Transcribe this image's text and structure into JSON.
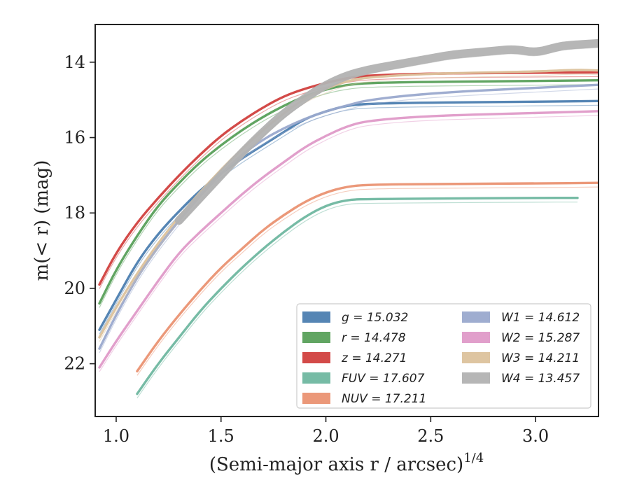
{
  "chart_data": {
    "type": "line",
    "xlabel": "(Semi-major axis r / arcsec)",
    "xlabel_exponent": "1/4",
    "ylabel": "m(< r) (mag)",
    "xlim": [
      0.9,
      3.3
    ],
    "ylim": [
      23.4,
      13.0
    ],
    "y_inverted": true,
    "grid": false,
    "legend_placement": "lower-right",
    "x_ticks": [
      "1.0",
      "1.5",
      "2.0",
      "2.5",
      "3.0"
    ],
    "y_ticks": [
      "14",
      "16",
      "18",
      "20",
      "22"
    ],
    "series": [
      {
        "name": "g",
        "label": "g = 15.032",
        "color": "#4c7eb0",
        "x": [
          0.92,
          1.0,
          1.1,
          1.2,
          1.3,
          1.4,
          1.5,
          1.6,
          1.7,
          1.8,
          1.9,
          2.0,
          2.1,
          2.2,
          2.5,
          3.0,
          3.3
        ],
        "y": [
          21.1,
          20.3,
          19.3,
          18.55,
          17.95,
          17.4,
          16.95,
          16.55,
          16.2,
          15.85,
          15.5,
          15.3,
          15.15,
          15.1,
          15.07,
          15.05,
          15.03
        ]
      },
      {
        "name": "r",
        "label": "r = 14.478",
        "color": "#58a05a",
        "x": [
          0.92,
          1.0,
          1.1,
          1.2,
          1.3,
          1.4,
          1.5,
          1.6,
          1.7,
          1.8,
          1.9,
          2.0,
          2.1,
          2.2,
          2.5,
          3.0,
          3.3
        ],
        "y": [
          20.4,
          19.5,
          18.6,
          17.8,
          17.2,
          16.65,
          16.2,
          15.8,
          15.45,
          15.15,
          14.9,
          14.72,
          14.6,
          14.55,
          14.52,
          14.5,
          14.48
        ]
      },
      {
        "name": "z",
        "label": "z = 14.271",
        "color": "#d1403e",
        "x": [
          0.92,
          1.0,
          1.1,
          1.2,
          1.3,
          1.4,
          1.5,
          1.6,
          1.7,
          1.8,
          1.9,
          2.0,
          2.1,
          2.2,
          2.5,
          3.0,
          3.3
        ],
        "y": [
          19.9,
          19.05,
          18.25,
          17.6,
          17.0,
          16.45,
          15.95,
          15.55,
          15.2,
          14.9,
          14.7,
          14.55,
          14.42,
          14.35,
          14.3,
          14.28,
          14.27
        ]
      },
      {
        "name": "FUV",
        "label": "FUV = 17.607",
        "color": "#6fb7a0",
        "x": [
          1.1,
          1.2,
          1.3,
          1.4,
          1.5,
          1.6,
          1.7,
          1.8,
          1.9,
          2.0,
          2.1,
          2.2,
          2.5,
          3.0,
          3.2
        ],
        "y": [
          22.8,
          22.0,
          21.3,
          20.6,
          20.0,
          19.45,
          18.95,
          18.5,
          18.1,
          17.8,
          17.65,
          17.63,
          17.62,
          17.6,
          17.6
        ]
      },
      {
        "name": "NUV",
        "label": "NUV = 17.211",
        "color": "#ea9272",
        "x": [
          1.1,
          1.2,
          1.3,
          1.4,
          1.5,
          1.6,
          1.7,
          1.8,
          1.9,
          2.0,
          2.1,
          2.2,
          2.5,
          3.0,
          3.3
        ],
        "y": [
          22.2,
          21.4,
          20.7,
          20.05,
          19.45,
          18.95,
          18.45,
          18.05,
          17.7,
          17.45,
          17.3,
          17.25,
          17.23,
          17.22,
          17.2
        ]
      },
      {
        "name": "W1",
        "label": "W1 = 14.612",
        "color": "#9aa9cd",
        "x": [
          0.92,
          1.0,
          1.1,
          1.2,
          1.3,
          1.4,
          1.5,
          1.6,
          1.7,
          1.8,
          1.9,
          2.0,
          2.1,
          2.2,
          2.5,
          3.0,
          3.3
        ],
        "y": [
          21.6,
          20.7,
          19.7,
          18.9,
          18.2,
          17.55,
          16.95,
          16.45,
          16.05,
          15.75,
          15.5,
          15.3,
          15.15,
          15.0,
          14.82,
          14.68,
          14.6
        ]
      },
      {
        "name": "W2",
        "label": "W2 = 15.287",
        "color": "#df9ac8",
        "x": [
          0.92,
          1.0,
          1.1,
          1.2,
          1.3,
          1.4,
          1.5,
          1.6,
          1.7,
          1.8,
          1.9,
          2.0,
          2.1,
          2.2,
          2.5,
          3.0,
          3.3
        ],
        "y": [
          22.1,
          21.4,
          20.6,
          19.8,
          19.05,
          18.5,
          18.0,
          17.5,
          17.05,
          16.65,
          16.25,
          15.95,
          15.7,
          15.55,
          15.42,
          15.35,
          15.3
        ]
      },
      {
        "name": "W3",
        "label": "W3 = 14.211",
        "color": "#dcc29c",
        "x": [
          0.92,
          1.0,
          1.1,
          1.2,
          1.3,
          1.4,
          1.5,
          1.6,
          1.7,
          1.8,
          1.9,
          2.0,
          2.1,
          2.2,
          2.5,
          3.0,
          3.2,
          3.3
        ],
        "y": [
          21.3,
          20.5,
          19.6,
          18.8,
          18.1,
          17.45,
          16.85,
          16.3,
          15.8,
          15.35,
          14.95,
          14.7,
          14.5,
          14.4,
          14.3,
          14.25,
          14.2,
          14.22
        ]
      },
      {
        "name": "W4",
        "label": "W4 = 13.457",
        "color": "#b2b2b2",
        "x": [
          1.3,
          1.4,
          1.5,
          1.6,
          1.7,
          1.8,
          1.9,
          2.0,
          2.1,
          2.2,
          2.3,
          2.4,
          2.5,
          2.6,
          2.7,
          2.8,
          2.9,
          3.0,
          3.1,
          3.15,
          3.3
        ],
        "y": [
          18.2,
          17.6,
          17.0,
          16.4,
          15.85,
          15.35,
          14.95,
          14.6,
          14.35,
          14.2,
          14.1,
          14.0,
          13.9,
          13.8,
          13.75,
          13.7,
          13.65,
          13.75,
          13.6,
          13.55,
          13.5
        ]
      }
    ]
  }
}
